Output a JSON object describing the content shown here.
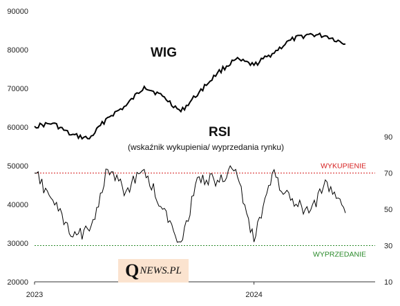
{
  "chart_data": {
    "type": "line",
    "title": "WIG",
    "subtitle": "RSI",
    "subtitle_note": "(wskaźnik wykupienia/ wyprzedania rynku)",
    "x_ticks": [
      "2023",
      "2024"
    ],
    "x_range": [
      "2023-01",
      "2024-06"
    ],
    "left_axis": {
      "ticks": [
        20000,
        30000,
        40000,
        50000,
        60000,
        70000,
        80000,
        90000
      ],
      "range": [
        20000,
        90000
      ]
    },
    "right_axis": {
      "ticks": [
        10,
        30,
        50,
        70,
        90
      ],
      "range": [
        10,
        90
      ]
    },
    "grid": false,
    "reference_lines": [
      {
        "label": "WYKUPIENIE",
        "value": 70,
        "axis": "right",
        "color": "#d62020"
      },
      {
        "label": "WYPRZEDANIE",
        "value": 30,
        "axis": "right",
        "color": "#2a8a2a"
      }
    ],
    "series": [
      {
        "name": "WIG",
        "axis": "left",
        "x": [
          "2023-01",
          "2023-02",
          "2023-03",
          "2023-04",
          "2023-05",
          "2023-06",
          "2023-07",
          "2023-08",
          "2023-09",
          "2023-10",
          "2023-11",
          "2023-12",
          "2024-01",
          "2024-02",
          "2024-03",
          "2024-04",
          "2024-05",
          "2024-06"
        ],
        "values": [
          60200,
          61000,
          58000,
          57000,
          62500,
          65500,
          70500,
          68000,
          64000,
          69000,
          74000,
          77500,
          76000,
          79000,
          82500,
          84000,
          83500,
          81500
        ]
      },
      {
        "name": "RSI",
        "axis": "right",
        "x": [
          "2023-01",
          "2023-02",
          "2023-03",
          "2023-04",
          "2023-05",
          "2023-06",
          "2023-07",
          "2023-08",
          "2023-09",
          "2023-10",
          "2023-11",
          "2023-12",
          "2024-01",
          "2024-02",
          "2024-03",
          "2024-04",
          "2024-05",
          "2024-06"
        ],
        "values": [
          70,
          55,
          35,
          38,
          72,
          60,
          72,
          50,
          32,
          68,
          66,
          72,
          32,
          70,
          55,
          48,
          65,
          48
        ]
      }
    ]
  },
  "logo": {
    "mark": "Q",
    "text": "NEWS.PL"
  }
}
